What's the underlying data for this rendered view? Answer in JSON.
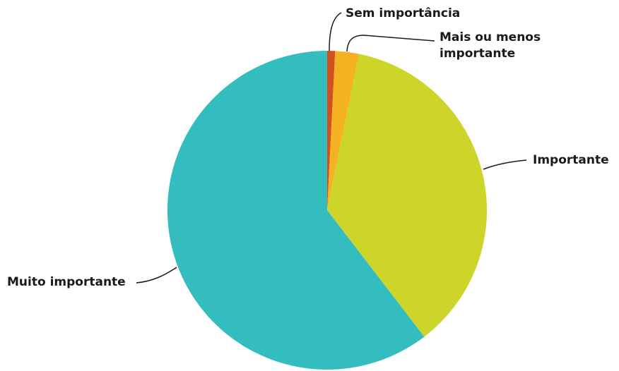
{
  "chart_data": {
    "type": "pie",
    "categories": [
      "Sem importância",
      "Mais ou menos importante",
      "Importante",
      "Muito importante"
    ],
    "values": [
      0.8,
      2.4,
      36.4,
      60.4
    ],
    "colors": [
      "#d1501e",
      "#f4b223",
      "#cdd52a",
      "#33bdbf"
    ],
    "start_angle_deg": 0,
    "direction": "clockwise",
    "legend": "none",
    "title": ""
  }
}
